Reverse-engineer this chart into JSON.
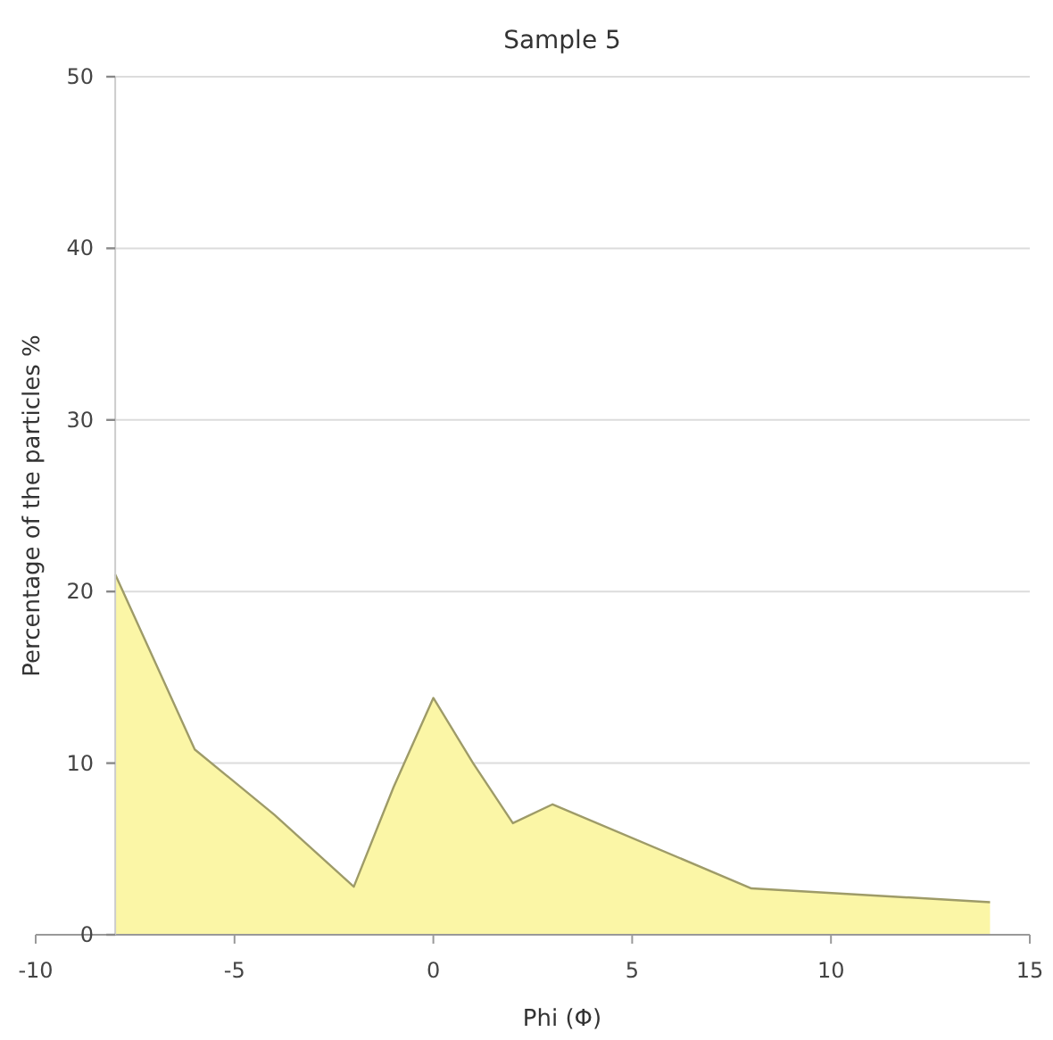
{
  "chart_data": {
    "type": "area",
    "title": "Sample 5",
    "xlabel": "Phi (Φ)",
    "ylabel": "Percentage of the particles %",
    "x": [
      -8,
      -6,
      -4,
      -2,
      -1,
      0,
      1,
      2,
      3,
      8,
      14
    ],
    "values": [
      21,
      10.8,
      7,
      2.8,
      8.6,
      13.8,
      10,
      6.5,
      7.6,
      2.7,
      1.9
    ],
    "color": "#fbf6a6",
    "xlim": [
      -10,
      15
    ],
    "xticks": [
      -10,
      -5,
      0,
      5,
      10,
      15
    ],
    "ylim": [
      0,
      50
    ],
    "yticks": [
      0,
      10,
      20,
      30,
      40,
      50
    ],
    "grid": "y"
  }
}
